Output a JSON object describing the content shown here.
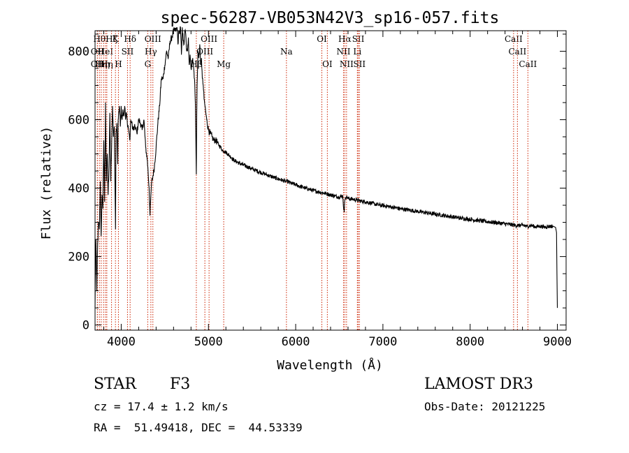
{
  "chart_data": {
    "type": "line",
    "title": "spec-56287-VB053N42V3_sp16-057.fits",
    "xlabel": "Wavelength (Å)",
    "ylabel": "Flux (relative)",
    "xlim": [
      3700,
      9100
    ],
    "ylim": [
      -15,
      860
    ],
    "xticks": [
      4000,
      5000,
      6000,
      7000,
      8000,
      9000
    ],
    "yticks": [
      0,
      200,
      400,
      600,
      800
    ],
    "minor_x_step": 200,
    "minor_y_step": 50,
    "grid": false,
    "series": [
      {
        "name": "flux",
        "x": [
          3700,
          3705,
          3710,
          3715,
          3720,
          3730,
          3740,
          3750,
          3760,
          3770,
          3780,
          3790,
          3800,
          3810,
          3820,
          3830,
          3840,
          3850,
          3860,
          3870,
          3880,
          3890,
          3900,
          3910,
          3920,
          3930,
          3935,
          3940,
          3950,
          3960,
          3965,
          3970,
          3980,
          3990,
          4000,
          4010,
          4020,
          4030,
          4040,
          4050,
          4060,
          4070,
          4080,
          4090,
          4100,
          4110,
          4120,
          4140,
          4160,
          4180,
          4200,
          4220,
          4240,
          4260,
          4280,
          4300,
          4320,
          4330,
          4340,
          4350,
          4360,
          4380,
          4400,
          4420,
          4440,
          4460,
          4480,
          4500,
          4520,
          4540,
          4560,
          4580,
          4600,
          4620,
          4640,
          4650,
          4660,
          4670,
          4680,
          4690,
          4700,
          4710,
          4720,
          4730,
          4740,
          4750,
          4760,
          4770,
          4780,
          4790,
          4800,
          4820,
          4840,
          4850,
          4855,
          4861,
          4866,
          4870,
          4880,
          4890,
          4900,
          4910,
          4920,
          4930,
          4940,
          4950,
          4960,
          4970,
          4980,
          5000,
          5020,
          5040,
          5060,
          5080,
          5100,
          5120,
          5140,
          5160,
          5180,
          5200,
          5220,
          5240,
          5260,
          5280,
          5300,
          5350,
          5400,
          5450,
          5500,
          5550,
          5600,
          5650,
          5700,
          5750,
          5800,
          5850,
          5890,
          5900,
          5950,
          6000,
          6050,
          6100,
          6150,
          6200,
          6250,
          6300,
          6350,
          6400,
          6450,
          6500,
          6540,
          6550,
          6556,
          6563,
          6570,
          6580,
          6600,
          6650,
          6700,
          6750,
          6800,
          6850,
          6900,
          6950,
          7000,
          7100,
          7200,
          7300,
          7400,
          7500,
          7600,
          7700,
          7800,
          7900,
          8000,
          8100,
          8200,
          8300,
          8400,
          8500,
          8550,
          8600,
          8650,
          8700,
          8750,
          8800,
          8850,
          8900,
          8950,
          8980,
          8990,
          8995,
          9000
        ],
        "y": [
          50,
          180,
          250,
          160,
          100,
          240,
          300,
          280,
          420,
          260,
          380,
          340,
          540,
          360,
          650,
          420,
          500,
          380,
          460,
          620,
          420,
          520,
          640,
          550,
          580,
          380,
          280,
          560,
          590,
          470,
          600,
          620,
          640,
          580,
          640,
          600,
          630,
          610,
          640,
          600,
          620,
          590,
          580,
          560,
          540,
          600,
          590,
          570,
          580,
          560,
          600,
          590,
          570,
          600,
          520,
          480,
          400,
          320,
          380,
          420,
          430,
          460,
          520,
          590,
          640,
          720,
          720,
          760,
          800,
          780,
          830,
          840,
          860,
          860,
          870,
          820,
          860,
          850,
          870,
          790,
          870,
          830,
          820,
          860,
          850,
          800,
          800,
          840,
          760,
          790,
          750,
          780,
          720,
          650,
          550,
          440,
          620,
          700,
          800,
          780,
          820,
          760,
          780,
          720,
          700,
          660,
          640,
          620,
          600,
          570,
          560,
          550,
          540,
          540,
          535,
          525,
          520,
          510,
          508,
          505,
          500,
          495,
          490,
          485,
          480,
          473,
          468,
          462,
          456,
          451,
          446,
          441,
          436,
          431,
          427,
          423,
          419,
          420,
          414,
          410,
          405,
          401,
          397,
          393,
          390,
          387,
          384,
          380,
          377,
          374,
          378,
          340,
          330,
          365,
          373,
          375,
          370,
          368,
          365,
          362,
          360,
          357,
          354,
          351,
          349,
          345,
          340,
          336,
          332,
          328,
          324,
          320,
          316,
          312,
          309,
          305,
          302,
          299,
          296,
          292,
          290,
          292,
          288,
          291,
          287,
          289,
          286,
          288,
          289,
          285,
          270,
          150,
          50
        ]
      }
    ],
    "line_markers": [
      {
        "wavelength": 3727,
        "label": "OII",
        "row": 2
      },
      {
        "wavelength": 3727,
        "label": "OII",
        "row": 3
      },
      {
        "wavelength": 3750,
        "label": "Hθ",
        "row": 1
      },
      {
        "wavelength": 3771,
        "label": "Hη",
        "row": 3
      },
      {
        "wavelength": 3798,
        "label": "Hη",
        "row": 3
      },
      {
        "wavelength": 3835,
        "label": "Hη",
        "row": 3
      },
      {
        "wavelength": 3820,
        "label": "HeI",
        "row": 2
      },
      {
        "wavelength": 3889,
        "label": "Hζ",
        "row": 1
      },
      {
        "wavelength": 3934,
        "label": "K",
        "row": 1
      },
      {
        "wavelength": 3968,
        "label": "H",
        "row": 3
      },
      {
        "wavelength": 4072,
        "label": "SII",
        "row": 2
      },
      {
        "wavelength": 4102,
        "label": "Hδ",
        "row": 1
      },
      {
        "wavelength": 4304,
        "label": "G",
        "row": 3
      },
      {
        "wavelength": 4340,
        "label": "Hγ",
        "row": 2
      },
      {
        "wavelength": 4363,
        "label": "OIII",
        "row": 1
      },
      {
        "wavelength": 4861,
        "label": "Hβ",
        "row": 3
      },
      {
        "wavelength": 4959,
        "label": "OIII",
        "row": 2
      },
      {
        "wavelength": 5007,
        "label": "OIII",
        "row": 1
      },
      {
        "wavelength": 5175,
        "label": "Mg",
        "row": 3
      },
      {
        "wavelength": 5894,
        "label": "Na",
        "row": 2
      },
      {
        "wavelength": 6300,
        "label": "OI",
        "row": 1
      },
      {
        "wavelength": 6363,
        "label": "OI",
        "row": 3
      },
      {
        "wavelength": 6548,
        "label": "NII",
        "row": 2
      },
      {
        "wavelength": 6563,
        "label": "Hα",
        "row": 1
      },
      {
        "wavelength": 6583,
        "label": "NII",
        "row": 3
      },
      {
        "wavelength": 6707,
        "label": "Li",
        "row": 2
      },
      {
        "wavelength": 6717,
        "label": "SII",
        "row": 1
      },
      {
        "wavelength": 6731,
        "label": "SII",
        "row": 3
      },
      {
        "wavelength": 8498,
        "label": "CaII",
        "row": 1
      },
      {
        "wavelength": 8542,
        "label": "CaII",
        "row": 2
      },
      {
        "wavelength": 8662,
        "label": "CaII",
        "row": 3
      }
    ]
  },
  "info": {
    "class": "STAR",
    "subclass": "F3",
    "survey": "LAMOST DR3",
    "cz": "cz = 17.4 ± 1.2 km/s",
    "obs_date": "Obs-Date: 20121225",
    "coords": "RA =  51.49418, DEC =  44.53339"
  },
  "colors": {
    "spectrum": "#000000",
    "marker_line": "#cc2200",
    "text": "#000000"
  }
}
